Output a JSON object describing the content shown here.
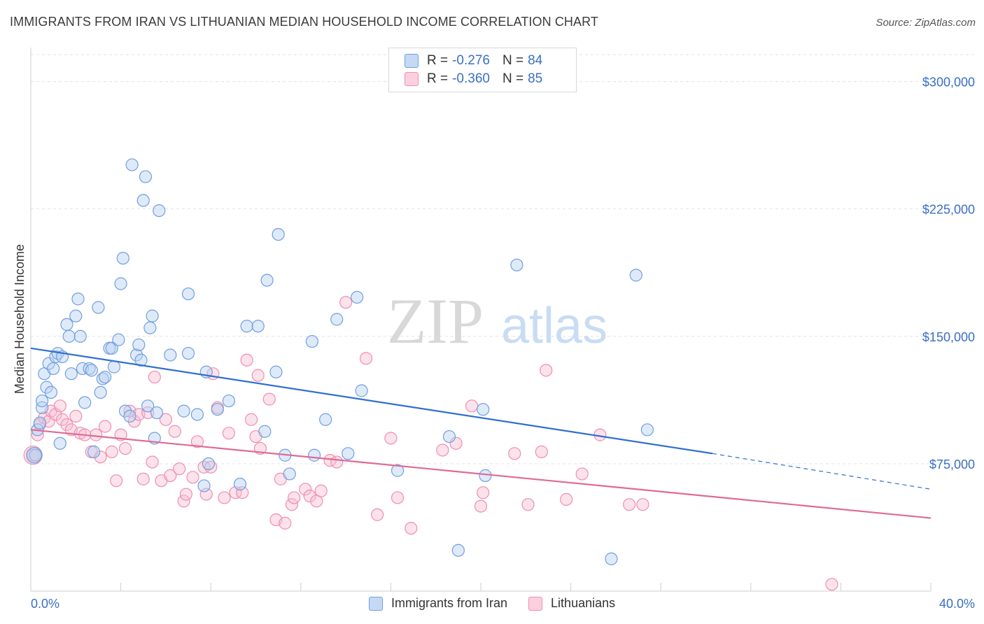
{
  "title": "IMMIGRANTS FROM IRAN VS LITHUANIAN MEDIAN HOUSEHOLD INCOME CORRELATION CHART",
  "source": "Source: ZipAtlas.com",
  "watermark": {
    "zip": "ZIP",
    "atlas": "atlas"
  },
  "legend": {
    "rows": [
      {
        "r_label": "R =",
        "r_value": "-0.276",
        "n_label": "N =",
        "n_value": "84"
      },
      {
        "r_label": "R =",
        "r_value": "-0.360",
        "n_label": "N =",
        "n_value": "85"
      }
    ]
  },
  "chart_data": {
    "type": "scatter",
    "title": "IMMIGRANTS FROM IRAN VS LITHUANIAN MEDIAN HOUSEHOLD INCOME CORRELATION CHART",
    "xlabel": "",
    "ylabel": "Median Household Income",
    "xlim": [
      0,
      40
    ],
    "ylim": [
      0,
      320000
    ],
    "x_tick_labels": [
      "0.0%",
      "40.0%"
    ],
    "y_ticks": [
      75000,
      150000,
      225000,
      300000
    ],
    "y_tick_labels": [
      "$75,000",
      "$150,000",
      "$225,000",
      "$300,000"
    ],
    "grid": true,
    "legend_position": "top-center",
    "colors": {
      "blue": "#6f9fe0",
      "pink": "#ef8fae",
      "blue_line": "#2f6fd1",
      "pink_line": "#e06a95",
      "axis_text": "#3a6fc4"
    },
    "series": [
      {
        "name": "Immigrants from Iran",
        "color": "#6f9fe0",
        "trend": {
          "x": [
            0,
            30.3
          ],
          "y": [
            143000,
            81000
          ],
          "dashed_to": [
            40,
            60000
          ]
        },
        "points": [
          [
            0.2,
            80000
          ],
          [
            0.3,
            95000
          ],
          [
            0.4,
            99000
          ],
          [
            0.5,
            108000
          ],
          [
            0.5,
            112000
          ],
          [
            0.6,
            128000
          ],
          [
            0.7,
            120000
          ],
          [
            0.8,
            134000
          ],
          [
            0.9,
            117000
          ],
          [
            1.0,
            131000
          ],
          [
            1.1,
            138000
          ],
          [
            1.2,
            140000
          ],
          [
            1.3,
            87000
          ],
          [
            1.4,
            138000
          ],
          [
            1.6,
            157000
          ],
          [
            1.7,
            150000
          ],
          [
            1.8,
            128000
          ],
          [
            2.0,
            162000
          ],
          [
            2.1,
            172000
          ],
          [
            2.2,
            150000
          ],
          [
            2.3,
            131000
          ],
          [
            2.4,
            111000
          ],
          [
            2.6,
            131000
          ],
          [
            2.7,
            130000
          ],
          [
            2.8,
            82000
          ],
          [
            3.0,
            167000
          ],
          [
            3.1,
            117000
          ],
          [
            3.2,
            125000
          ],
          [
            3.3,
            126000
          ],
          [
            3.5,
            143000
          ],
          [
            3.6,
            143000
          ],
          [
            3.7,
            132000
          ],
          [
            3.9,
            148000
          ],
          [
            4.0,
            181000
          ],
          [
            4.1,
            196000
          ],
          [
            4.2,
            106000
          ],
          [
            4.4,
            103000
          ],
          [
            4.5,
            251000
          ],
          [
            4.7,
            139000
          ],
          [
            4.8,
            145000
          ],
          [
            4.9,
            136000
          ],
          [
            5.0,
            230000
          ],
          [
            5.1,
            244000
          ],
          [
            5.2,
            109000
          ],
          [
            5.3,
            155000
          ],
          [
            5.4,
            162000
          ],
          [
            5.5,
            90000
          ],
          [
            5.6,
            105000
          ],
          [
            5.7,
            224000
          ],
          [
            6.2,
            139000
          ],
          [
            6.8,
            106000
          ],
          [
            7.0,
            140000
          ],
          [
            7.0,
            175000
          ],
          [
            7.4,
            104000
          ],
          [
            7.7,
            62000
          ],
          [
            7.8,
            129000
          ],
          [
            7.9,
            75000
          ],
          [
            8.3,
            107000
          ],
          [
            8.8,
            112000
          ],
          [
            9.3,
            63000
          ],
          [
            9.6,
            156000
          ],
          [
            10.1,
            156000
          ],
          [
            10.4,
            94000
          ],
          [
            10.5,
            183000
          ],
          [
            10.9,
            129000
          ],
          [
            11.0,
            210000
          ],
          [
            11.3,
            80000
          ],
          [
            11.5,
            69000
          ],
          [
            12.5,
            147000
          ],
          [
            12.6,
            80000
          ],
          [
            13.1,
            101000
          ],
          [
            13.6,
            160000
          ],
          [
            14.1,
            81000
          ],
          [
            14.5,
            173000
          ],
          [
            14.7,
            118000
          ],
          [
            16.3,
            71000
          ],
          [
            18.6,
            91000
          ],
          [
            19.0,
            24000
          ],
          [
            20.1,
            107000
          ],
          [
            20.2,
            68000
          ],
          [
            21.6,
            192000
          ],
          [
            25.8,
            19000
          ],
          [
            26.9,
            186000
          ],
          [
            27.4,
            95000
          ]
        ]
      },
      {
        "name": "Lithuanians",
        "color": "#ef8fae",
        "trend": {
          "x": [
            0,
            40
          ],
          "y": [
            95000,
            43000
          ]
        },
        "points": [
          [
            0.1,
            80000
          ],
          [
            0.3,
            92000
          ],
          [
            0.4,
            98000
          ],
          [
            0.6,
            102000
          ],
          [
            0.8,
            100000
          ],
          [
            0.9,
            106000
          ],
          [
            1.1,
            104000
          ],
          [
            1.3,
            109000
          ],
          [
            1.4,
            101000
          ],
          [
            1.6,
            98000
          ],
          [
            1.8,
            95000
          ],
          [
            2.0,
            103000
          ],
          [
            2.2,
            93000
          ],
          [
            2.4,
            92000
          ],
          [
            2.7,
            82000
          ],
          [
            2.9,
            92000
          ],
          [
            3.1,
            79000
          ],
          [
            3.3,
            97000
          ],
          [
            3.6,
            82000
          ],
          [
            3.8,
            65000
          ],
          [
            4.0,
            92000
          ],
          [
            4.2,
            84000
          ],
          [
            4.4,
            106000
          ],
          [
            4.6,
            100000
          ],
          [
            4.8,
            104000
          ],
          [
            5.0,
            66000
          ],
          [
            5.2,
            105000
          ],
          [
            5.4,
            76000
          ],
          [
            5.5,
            126000
          ],
          [
            5.8,
            65000
          ],
          [
            6.0,
            101000
          ],
          [
            6.2,
            68000
          ],
          [
            6.4,
            94000
          ],
          [
            6.6,
            72000
          ],
          [
            6.8,
            53000
          ],
          [
            6.9,
            57000
          ],
          [
            7.2,
            67000
          ],
          [
            7.4,
            88000
          ],
          [
            7.7,
            73000
          ],
          [
            7.8,
            57000
          ],
          [
            8.0,
            73000
          ],
          [
            8.1,
            128000
          ],
          [
            8.3,
            108000
          ],
          [
            8.6,
            55000
          ],
          [
            8.8,
            93000
          ],
          [
            9.1,
            58000
          ],
          [
            9.4,
            58000
          ],
          [
            9.6,
            136000
          ],
          [
            9.8,
            101000
          ],
          [
            10.0,
            91000
          ],
          [
            10.1,
            127000
          ],
          [
            10.2,
            84000
          ],
          [
            10.6,
            113000
          ],
          [
            10.9,
            42000
          ],
          [
            11.1,
            66000
          ],
          [
            11.3,
            40000
          ],
          [
            11.6,
            51000
          ],
          [
            11.7,
            55000
          ],
          [
            12.2,
            60000
          ],
          [
            12.4,
            56000
          ],
          [
            12.7,
            53000
          ],
          [
            12.9,
            59000
          ],
          [
            13.3,
            77000
          ],
          [
            13.6,
            76000
          ],
          [
            14.0,
            170000
          ],
          [
            14.9,
            137000
          ],
          [
            15.4,
            45000
          ],
          [
            16.0,
            90000
          ],
          [
            16.3,
            55000
          ],
          [
            16.9,
            37000
          ],
          [
            18.3,
            83000
          ],
          [
            18.9,
            87000
          ],
          [
            19.6,
            109000
          ],
          [
            20.0,
            50000
          ],
          [
            20.1,
            58000
          ],
          [
            21.5,
            81000
          ],
          [
            22.1,
            51000
          ],
          [
            22.7,
            82000
          ],
          [
            22.9,
            130000
          ],
          [
            23.8,
            54000
          ],
          [
            24.5,
            69000
          ],
          [
            25.3,
            92000
          ],
          [
            26.6,
            51000
          ],
          [
            27.2,
            51000
          ],
          [
            35.6,
            4000
          ]
        ]
      }
    ]
  }
}
